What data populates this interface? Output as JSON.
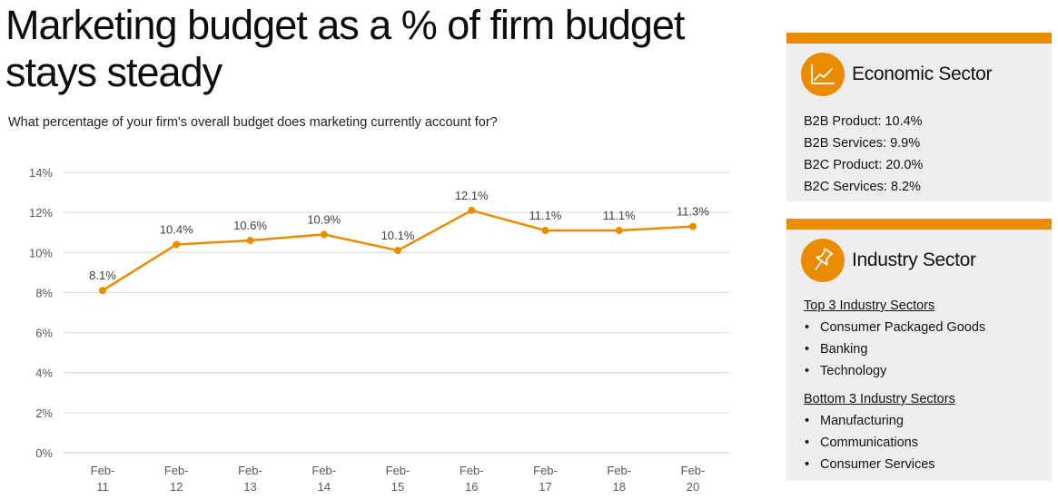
{
  "title": "Marketing budget as a % of firm budget stays steady",
  "subtitle": "What percentage of your firm's overall budget does marketing currently account for?",
  "colors": {
    "accent": "#eb8c00",
    "card_bg": "#eeeeee",
    "grid": "#d9d9d9"
  },
  "chart_data": {
    "type": "line",
    "categories": [
      [
        "Feb-",
        "11"
      ],
      [
        "Feb-",
        "12"
      ],
      [
        "Feb-",
        "13"
      ],
      [
        "Feb-",
        "14"
      ],
      [
        "Feb-",
        "15"
      ],
      [
        "Feb-",
        "16"
      ],
      [
        "Feb-",
        "17"
      ],
      [
        "Feb-",
        "18"
      ],
      [
        "Feb-",
        "20"
      ]
    ],
    "values": [
      8.1,
      10.4,
      10.6,
      10.9,
      10.1,
      12.1,
      11.1,
      11.1,
      11.3
    ],
    "data_labels": [
      "8.1%",
      "10.4%",
      "10.6%",
      "10.9%",
      "10.1%",
      "12.1%",
      "11.1%",
      "11.1%",
      "11.3%"
    ],
    "yticks": [
      0,
      2,
      4,
      6,
      8,
      10,
      12,
      14
    ],
    "ytick_labels": [
      "0%",
      "2%",
      "4%",
      "6%",
      "8%",
      "10%",
      "12%",
      "14%"
    ],
    "ylim": [
      0,
      14
    ],
    "grid": true,
    "legend": "none",
    "color": "#eb8c00"
  },
  "economic": {
    "title": "Economic Sector",
    "icon": "line-chart-icon",
    "items": [
      "B2B Product: 10.4%",
      "B2B Services: 9.9%",
      "B2C Product: 20.0%",
      "B2C Services: 8.2%"
    ]
  },
  "industry": {
    "title": "Industry Sector",
    "icon": "pushpin-icon",
    "top_title": "Top 3 Industry Sectors",
    "top": [
      "Consumer Packaged Goods",
      "Banking",
      "Technology"
    ],
    "bottom_title": "Bottom 3 Industry Sectors",
    "bottom": [
      "Manufacturing",
      "Communications",
      "Consumer Services"
    ]
  }
}
